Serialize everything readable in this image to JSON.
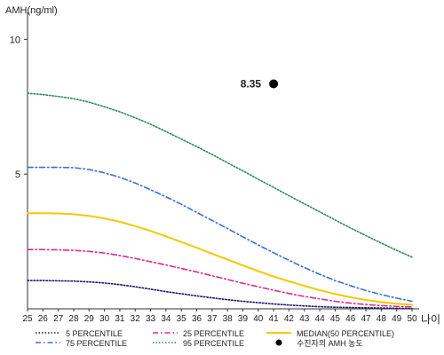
{
  "chart_data": {
    "type": "line",
    "ylabel": "AMH(ng/ml)",
    "xlabel": "나이",
    "x": [
      25,
      26,
      27,
      28,
      29,
      30,
      31,
      32,
      33,
      34,
      35,
      36,
      37,
      38,
      39,
      40,
      41,
      42,
      43,
      44,
      45,
      46,
      47,
      48,
      49,
      50
    ],
    "x_tick_labels": [
      "25",
      "26",
      "27",
      "28",
      "29",
      "30",
      "31",
      "32",
      "33",
      "34",
      "35",
      "36",
      "37",
      "38",
      "39",
      "40",
      "41",
      "42",
      "43",
      "44",
      "45",
      "46",
      "47",
      "48",
      "49",
      "50"
    ],
    "y_tick_labels": [
      "5",
      "10"
    ],
    "y_ticks": [
      5,
      10
    ],
    "ylim": [
      0,
      11
    ],
    "xlim": [
      25,
      50
    ],
    "grid": false,
    "legend_position": "bottom",
    "series": [
      {
        "name": "5 PERCENTILE",
        "color": "#1a1a6e",
        "style": "dotted",
        "values": [
          1.05,
          1.05,
          1.04,
          1.03,
          1.0,
          0.96,
          0.9,
          0.82,
          0.73,
          0.64,
          0.56,
          0.48,
          0.41,
          0.34,
          0.28,
          0.23,
          0.18,
          0.14,
          0.11,
          0.08,
          0.06,
          0.05,
          0.04,
          0.03,
          0.02,
          0.01
        ]
      },
      {
        "name": "25 PERCENTILE",
        "color": "#e0288c",
        "style": "dashdot",
        "values": [
          2.2,
          2.2,
          2.19,
          2.17,
          2.13,
          2.07,
          1.98,
          1.87,
          1.75,
          1.63,
          1.5,
          1.37,
          1.23,
          1.09,
          0.95,
          0.82,
          0.69,
          0.57,
          0.46,
          0.37,
          0.28,
          0.21,
          0.16,
          0.12,
          0.09,
          0.07
        ]
      },
      {
        "name": "MEDIAN(50 PERCENTILE)",
        "color": "#f5c800",
        "style": "solid",
        "values": [
          3.55,
          3.55,
          3.54,
          3.51,
          3.45,
          3.36,
          3.23,
          3.07,
          2.89,
          2.69,
          2.48,
          2.27,
          2.05,
          1.83,
          1.61,
          1.4,
          1.2,
          1.02,
          0.85,
          0.69,
          0.55,
          0.43,
          0.33,
          0.25,
          0.19,
          0.15
        ]
      },
      {
        "name": "75 PERCENTILE",
        "color": "#3a6fd8",
        "style": "dashdot",
        "values": [
          5.25,
          5.25,
          5.25,
          5.24,
          5.17,
          5.05,
          4.88,
          4.67,
          4.42,
          4.16,
          3.88,
          3.58,
          3.28,
          2.98,
          2.67,
          2.37,
          2.08,
          1.8,
          1.53,
          1.28,
          1.05,
          0.86,
          0.68,
          0.53,
          0.4,
          0.28
        ]
      },
      {
        "name": "95 PERCENTILE",
        "color": "#2e8b57",
        "style": "dotted",
        "values": [
          8.0,
          7.95,
          7.88,
          7.8,
          7.67,
          7.5,
          7.31,
          7.09,
          6.85,
          6.58,
          6.3,
          6.02,
          5.73,
          5.42,
          5.12,
          4.81,
          4.51,
          4.2,
          3.9,
          3.6,
          3.3,
          3.0,
          2.72,
          2.44,
          2.17,
          1.92
        ]
      }
    ],
    "patient": {
      "name": "수진자의 AMH 농도",
      "x": 41,
      "y": 8.35,
      "label": "8.35",
      "color": "#000000"
    }
  }
}
